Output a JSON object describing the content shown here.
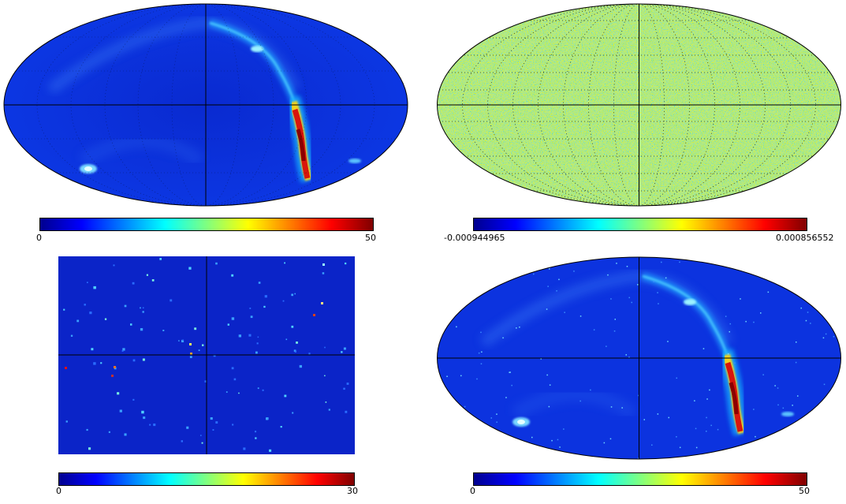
{
  "panels": [
    {
      "id": "top-left",
      "projection": "mollweide",
      "content": "galactic-dust-band",
      "colorbar": {
        "min_label": "0",
        "max_label": "50",
        "colormap": "jet"
      }
    },
    {
      "id": "top-right",
      "projection": "mollweide",
      "content": "noise",
      "colorbar": {
        "min_label": "-0.000944965",
        "max_label": "0.000856552",
        "colormap": "jet"
      }
    },
    {
      "id": "bottom-left",
      "projection": "cartesian",
      "content": "point-sources",
      "colorbar": {
        "min_label": "0",
        "max_label": "30",
        "colormap": "jet"
      }
    },
    {
      "id": "bottom-right",
      "projection": "mollweide",
      "content": "galactic-dust-band-with-sources",
      "colorbar": {
        "min_label": "0",
        "max_label": "50",
        "colormap": "jet"
      }
    }
  ],
  "colors": {
    "jet_low": "#00008f",
    "jet_blue": "#0000ff",
    "jet_cyan": "#00ffff",
    "jet_yellow": "#ffff00",
    "jet_red": "#ff0000",
    "jet_high": "#800000",
    "background_map": "#0d2fd8",
    "noise_base": "#b8f05a",
    "graticule": "#000000"
  }
}
